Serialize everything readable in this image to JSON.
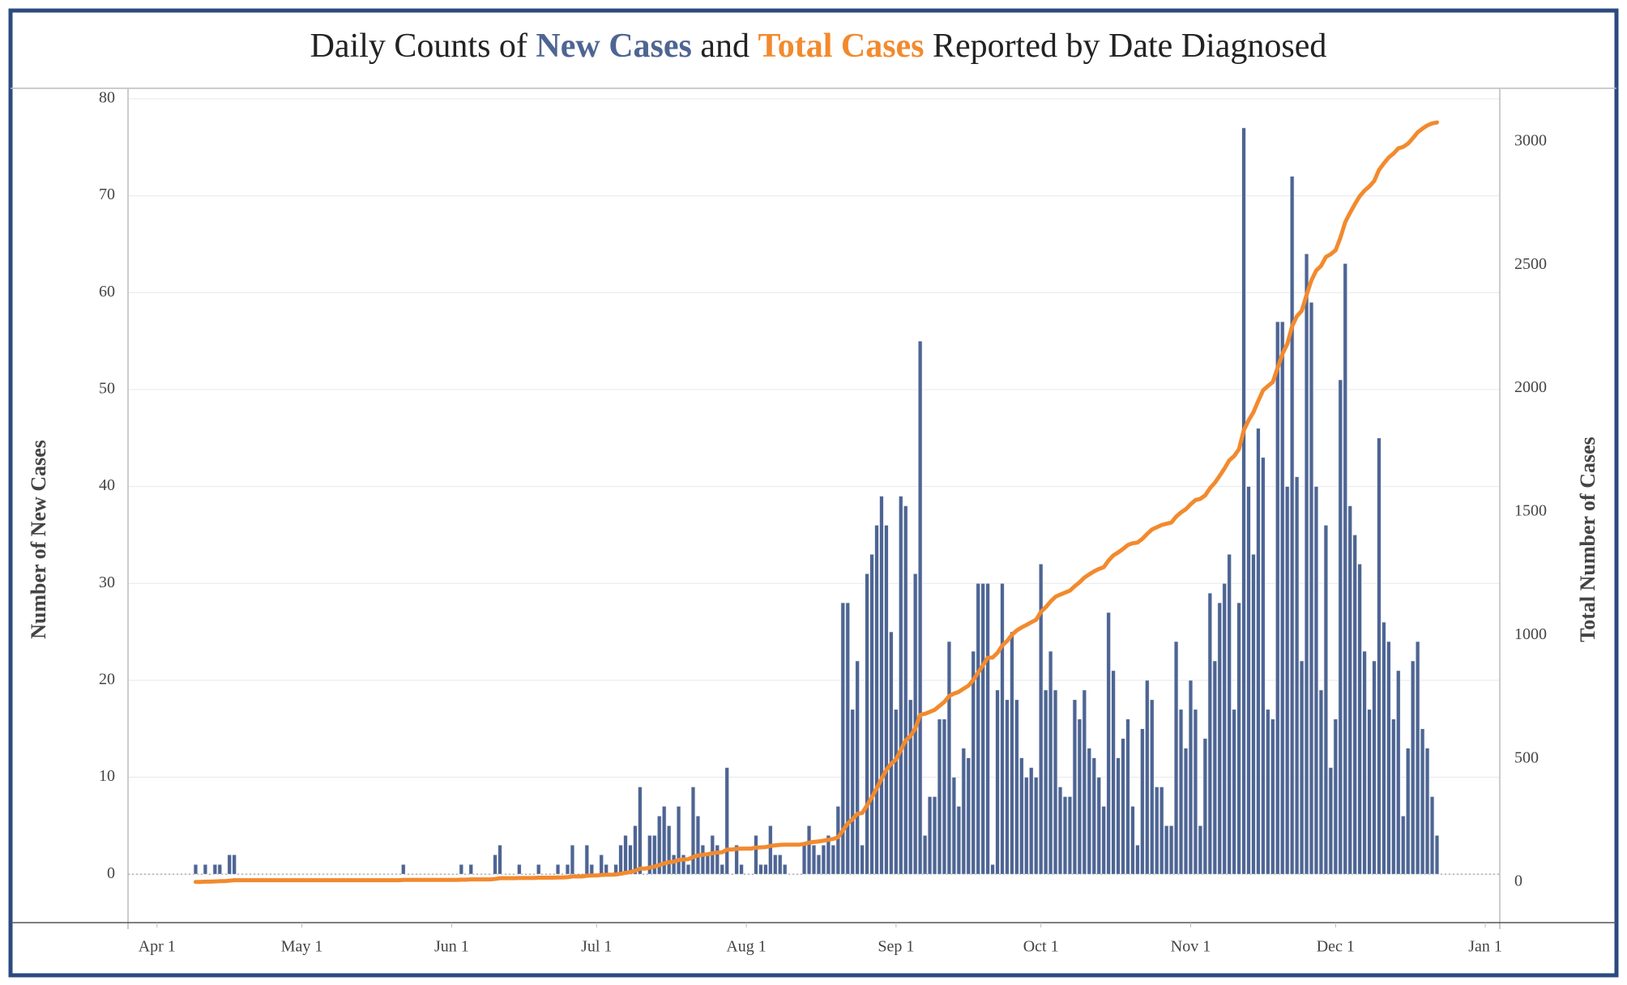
{
  "chart_data": {
    "type": "bar-line",
    "title": [
      "Daily Counts of ",
      " and ",
      " Reported by Date Diagnosed"
    ],
    "y_label": "Number of New Cases",
    "y2_label": "Total Number of Cases",
    "xlim": [
      "03-26",
      "01-04"
    ],
    "xticks": [
      {
        "value": "04-01",
        "label": "Apr 1"
      },
      {
        "value": "05-01",
        "label": "May 1"
      },
      {
        "value": "06-01",
        "label": "Jun 1"
      },
      {
        "value": "07-01",
        "label": "Jul 1"
      },
      {
        "value": "08-01",
        "label": "Aug 1"
      },
      {
        "value": "09-01",
        "label": "Sep 1"
      },
      {
        "value": "10-01",
        "label": "Oct 1"
      },
      {
        "value": "11-01",
        "label": "Nov 1"
      },
      {
        "value": "12-01",
        "label": "Dec 1"
      },
      {
        "value": "01-01",
        "label": "Jan 1"
      }
    ],
    "ylim": [
      -5,
      81
    ],
    "yticks": [
      0,
      10,
      20,
      30,
      40,
      50,
      60,
      70,
      80
    ],
    "y2lim": [
      -164,
      3213
    ],
    "y2ticks": [
      0,
      500,
      1000,
      1500,
      2000,
      2500,
      3000
    ],
    "grid": true,
    "x": [
      "04-09",
      "04-10",
      "04-11",
      "04-12",
      "04-13",
      "04-14",
      "04-15",
      "04-16",
      "04-17",
      "04-18",
      "04-19",
      "04-20",
      "04-21",
      "04-22",
      "04-23",
      "04-24",
      "04-25",
      "04-26",
      "04-27",
      "04-28",
      "04-29",
      "04-30",
      "05-01",
      "05-02",
      "05-03",
      "05-04",
      "05-05",
      "05-06",
      "05-07",
      "05-08",
      "05-09",
      "05-10",
      "05-11",
      "05-12",
      "05-13",
      "05-14",
      "05-15",
      "05-16",
      "05-17",
      "05-18",
      "05-19",
      "05-20",
      "05-21",
      "05-22",
      "05-23",
      "05-24",
      "05-25",
      "05-26",
      "05-27",
      "05-28",
      "05-29",
      "05-30",
      "05-31",
      "06-01",
      "06-02",
      "06-03",
      "06-04",
      "06-05",
      "06-06",
      "06-07",
      "06-08",
      "06-09",
      "06-10",
      "06-11",
      "06-12",
      "06-13",
      "06-14",
      "06-15",
      "06-16",
      "06-17",
      "06-18",
      "06-19",
      "06-20",
      "06-21",
      "06-22",
      "06-23",
      "06-24",
      "06-25",
      "06-26",
      "06-27",
      "06-28",
      "06-29",
      "06-30",
      "07-01",
      "07-02",
      "07-03",
      "07-04",
      "07-05",
      "07-06",
      "07-07",
      "07-08",
      "07-09",
      "07-10",
      "07-11",
      "07-12",
      "07-13",
      "07-14",
      "07-15",
      "07-16",
      "07-17",
      "07-18",
      "07-19",
      "07-20",
      "07-21",
      "07-22",
      "07-23",
      "07-24",
      "07-25",
      "07-26",
      "07-27",
      "07-28",
      "07-29",
      "07-30",
      "07-31",
      "08-01",
      "08-02",
      "08-03",
      "08-04",
      "08-05",
      "08-06",
      "08-07",
      "08-08",
      "08-09",
      "08-10",
      "08-11",
      "08-12",
      "08-13",
      "08-14",
      "08-15",
      "08-16",
      "08-17",
      "08-18",
      "08-19",
      "08-20",
      "08-21",
      "08-22",
      "08-23",
      "08-24",
      "08-25",
      "08-26",
      "08-27",
      "08-28",
      "08-29",
      "08-30",
      "08-31",
      "09-01",
      "09-02",
      "09-03",
      "09-04",
      "09-05",
      "09-06",
      "09-07",
      "09-08",
      "09-09",
      "09-10",
      "09-11",
      "09-12",
      "09-13",
      "09-14",
      "09-15",
      "09-16",
      "09-17",
      "09-18",
      "09-19",
      "09-20",
      "09-21",
      "09-22",
      "09-23",
      "09-24",
      "09-25",
      "09-26",
      "09-27",
      "09-28",
      "09-29",
      "09-30",
      "10-01",
      "10-02",
      "10-03",
      "10-04",
      "10-05",
      "10-06",
      "10-07",
      "10-08",
      "10-09",
      "10-10",
      "10-11",
      "10-12",
      "10-13",
      "10-14",
      "10-15",
      "10-16",
      "10-17",
      "10-18",
      "10-19",
      "10-20",
      "10-21",
      "10-22",
      "10-23",
      "10-24",
      "10-25",
      "10-26",
      "10-27",
      "10-28",
      "10-29",
      "10-30",
      "10-31",
      "11-01",
      "11-02",
      "11-03",
      "11-04",
      "11-05",
      "11-06",
      "11-07",
      "11-08",
      "11-09",
      "11-10",
      "11-11",
      "11-12",
      "11-13",
      "11-14",
      "11-15",
      "11-16",
      "11-17",
      "11-18",
      "11-19",
      "11-20",
      "11-21",
      "11-22",
      "11-23",
      "11-24",
      "11-25",
      "11-26",
      "11-27",
      "11-28",
      "11-29",
      "11-30",
      "12-01",
      "12-02",
      "12-03",
      "12-04",
      "12-05",
      "12-06",
      "12-07",
      "12-08",
      "12-09",
      "12-10",
      "12-11",
      "12-12",
      "12-13",
      "12-14",
      "12-15",
      "12-16",
      "12-17",
      "12-18",
      "12-19",
      "12-20",
      "12-21",
      "12-22"
    ],
    "series": [
      {
        "name": "New Cases",
        "color": "#4e6593",
        "type": "bar",
        "values": [
          1,
          0,
          1,
          0,
          1,
          1,
          0,
          2,
          2,
          0,
          0,
          0,
          0,
          0,
          0,
          0,
          0,
          0,
          0,
          0,
          0,
          0,
          0,
          0,
          0,
          0,
          0,
          0,
          0,
          0,
          0,
          0,
          0,
          0,
          0,
          0,
          0,
          0,
          0,
          0,
          0,
          0,
          0,
          1,
          0,
          0,
          0,
          0,
          0,
          0,
          0,
          0,
          0,
          0,
          0,
          1,
          0,
          1,
          0,
          0,
          0,
          0,
          2,
          3,
          0,
          0,
          0,
          1,
          0,
          0,
          0,
          1,
          0,
          0,
          0,
          1,
          0,
          1,
          3,
          0,
          0,
          3,
          1,
          0,
          2,
          1,
          0,
          1,
          3,
          4,
          3,
          5,
          9,
          0,
          4,
          4,
          6,
          7,
          5,
          2,
          7,
          2,
          1,
          9,
          6,
          3,
          2,
          4,
          3,
          1,
          11,
          0,
          3,
          1,
          0,
          0,
          4,
          1,
          1,
          5,
          2,
          2,
          1,
          0,
          0,
          0,
          3,
          5,
          3,
          2,
          3,
          4,
          3,
          7,
          28,
          28,
          17,
          22,
          3,
          31,
          33,
          36,
          39,
          36,
          25,
          17,
          39,
          38,
          18,
          31,
          55,
          4,
          8,
          8,
          16,
          16,
          24,
          10,
          7,
          13,
          12,
          23,
          30,
          30,
          30,
          1,
          19,
          30,
          18,
          25,
          18,
          12,
          10,
          11,
          10,
          32,
          19,
          23,
          19,
          9,
          8,
          8,
          18,
          16,
          19,
          13,
          12,
          10,
          7,
          27,
          21,
          12,
          14,
          16,
          7,
          3,
          15,
          20,
          18,
          9,
          9,
          5,
          5,
          24,
          17,
          13,
          20,
          17,
          5,
          14,
          29,
          22,
          28,
          30,
          33,
          17,
          28,
          77,
          40,
          33,
          46,
          43,
          17,
          16,
          57,
          57,
          40,
          72,
          41,
          22,
          64,
          59,
          40,
          19,
          36,
          11,
          16,
          51,
          63,
          38,
          35,
          32,
          23,
          17,
          22,
          45,
          26,
          24,
          16,
          21,
          6,
          13,
          22,
          24,
          15,
          13,
          8,
          4
        ]
      },
      {
        "name": "Total Cases",
        "color": "#f28a2e",
        "type": "line",
        "axis": "y2",
        "values": [
          1,
          1,
          2,
          2,
          3,
          4,
          4,
          6,
          8,
          8,
          8,
          8,
          8,
          8,
          8,
          8,
          8,
          8,
          8,
          8,
          8,
          8,
          8,
          8,
          8,
          8,
          8,
          8,
          8,
          8,
          8,
          8,
          8,
          8,
          8,
          8,
          8,
          8,
          8,
          8,
          8,
          8,
          8,
          9,
          9,
          9,
          9,
          9,
          9,
          9,
          9,
          9,
          9,
          9,
          9,
          10,
          10,
          11,
          11,
          11,
          11,
          11,
          13,
          16,
          16,
          16,
          16,
          17,
          17,
          17,
          17,
          18,
          18,
          18,
          18,
          19,
          19,
          20,
          23,
          23,
          23,
          26,
          27,
          27,
          29,
          30,
          30,
          31,
          34,
          38,
          41,
          46,
          55,
          55,
          59,
          63,
          69,
          76,
          81,
          83,
          90,
          92,
          93,
          102,
          108,
          111,
          113,
          117,
          120,
          121,
          132,
          132,
          135,
          136,
          136,
          136,
          140,
          141,
          142,
          147,
          149,
          151,
          152,
          152,
          152,
          152,
          155,
          160,
          163,
          165,
          168,
          172,
          175,
          182,
          210,
          238,
          255,
          277,
          280,
          311,
          344,
          380,
          419,
          455,
          480,
          497,
          536,
          574,
          592,
          623,
          678,
          682,
          690,
          698,
          714,
          730,
          754,
          764,
          771,
          784,
          796,
          819,
          849,
          879,
          909,
          910,
          929,
          959,
          977,
          1002,
          1020,
          1032,
          1042,
          1053,
          1063,
          1095,
          1114,
          1137,
          1156,
          1165,
          1173,
          1181,
          1199,
          1215,
          1234,
          1247,
          1259,
          1269,
          1276,
          1303,
          1324,
          1336,
          1350,
          1366,
          1373,
          1376,
          1391,
          1411,
          1429,
          1438,
          1447,
          1452,
          1457,
          1481,
          1498,
          1511,
          1531,
          1548,
          1553,
          1567,
          1596,
          1618,
          1646,
          1676,
          1709,
          1726,
          1754,
          1831,
          1871,
          1904,
          1950,
          1993,
          2010,
          2026,
          2083,
          2140,
          2180,
          2252,
          2293,
          2315,
          2379,
          2438,
          2478,
          2497,
          2533,
          2544,
          2560,
          2611,
          2674,
          2712,
          2747,
          2779,
          2802,
          2819,
          2841,
          2886,
          2912,
          2936,
          2952,
          2973,
          2979,
          2992,
          3014,
          3038,
          3053,
          3066,
          3074,
          3078
        ]
      }
    ]
  }
}
